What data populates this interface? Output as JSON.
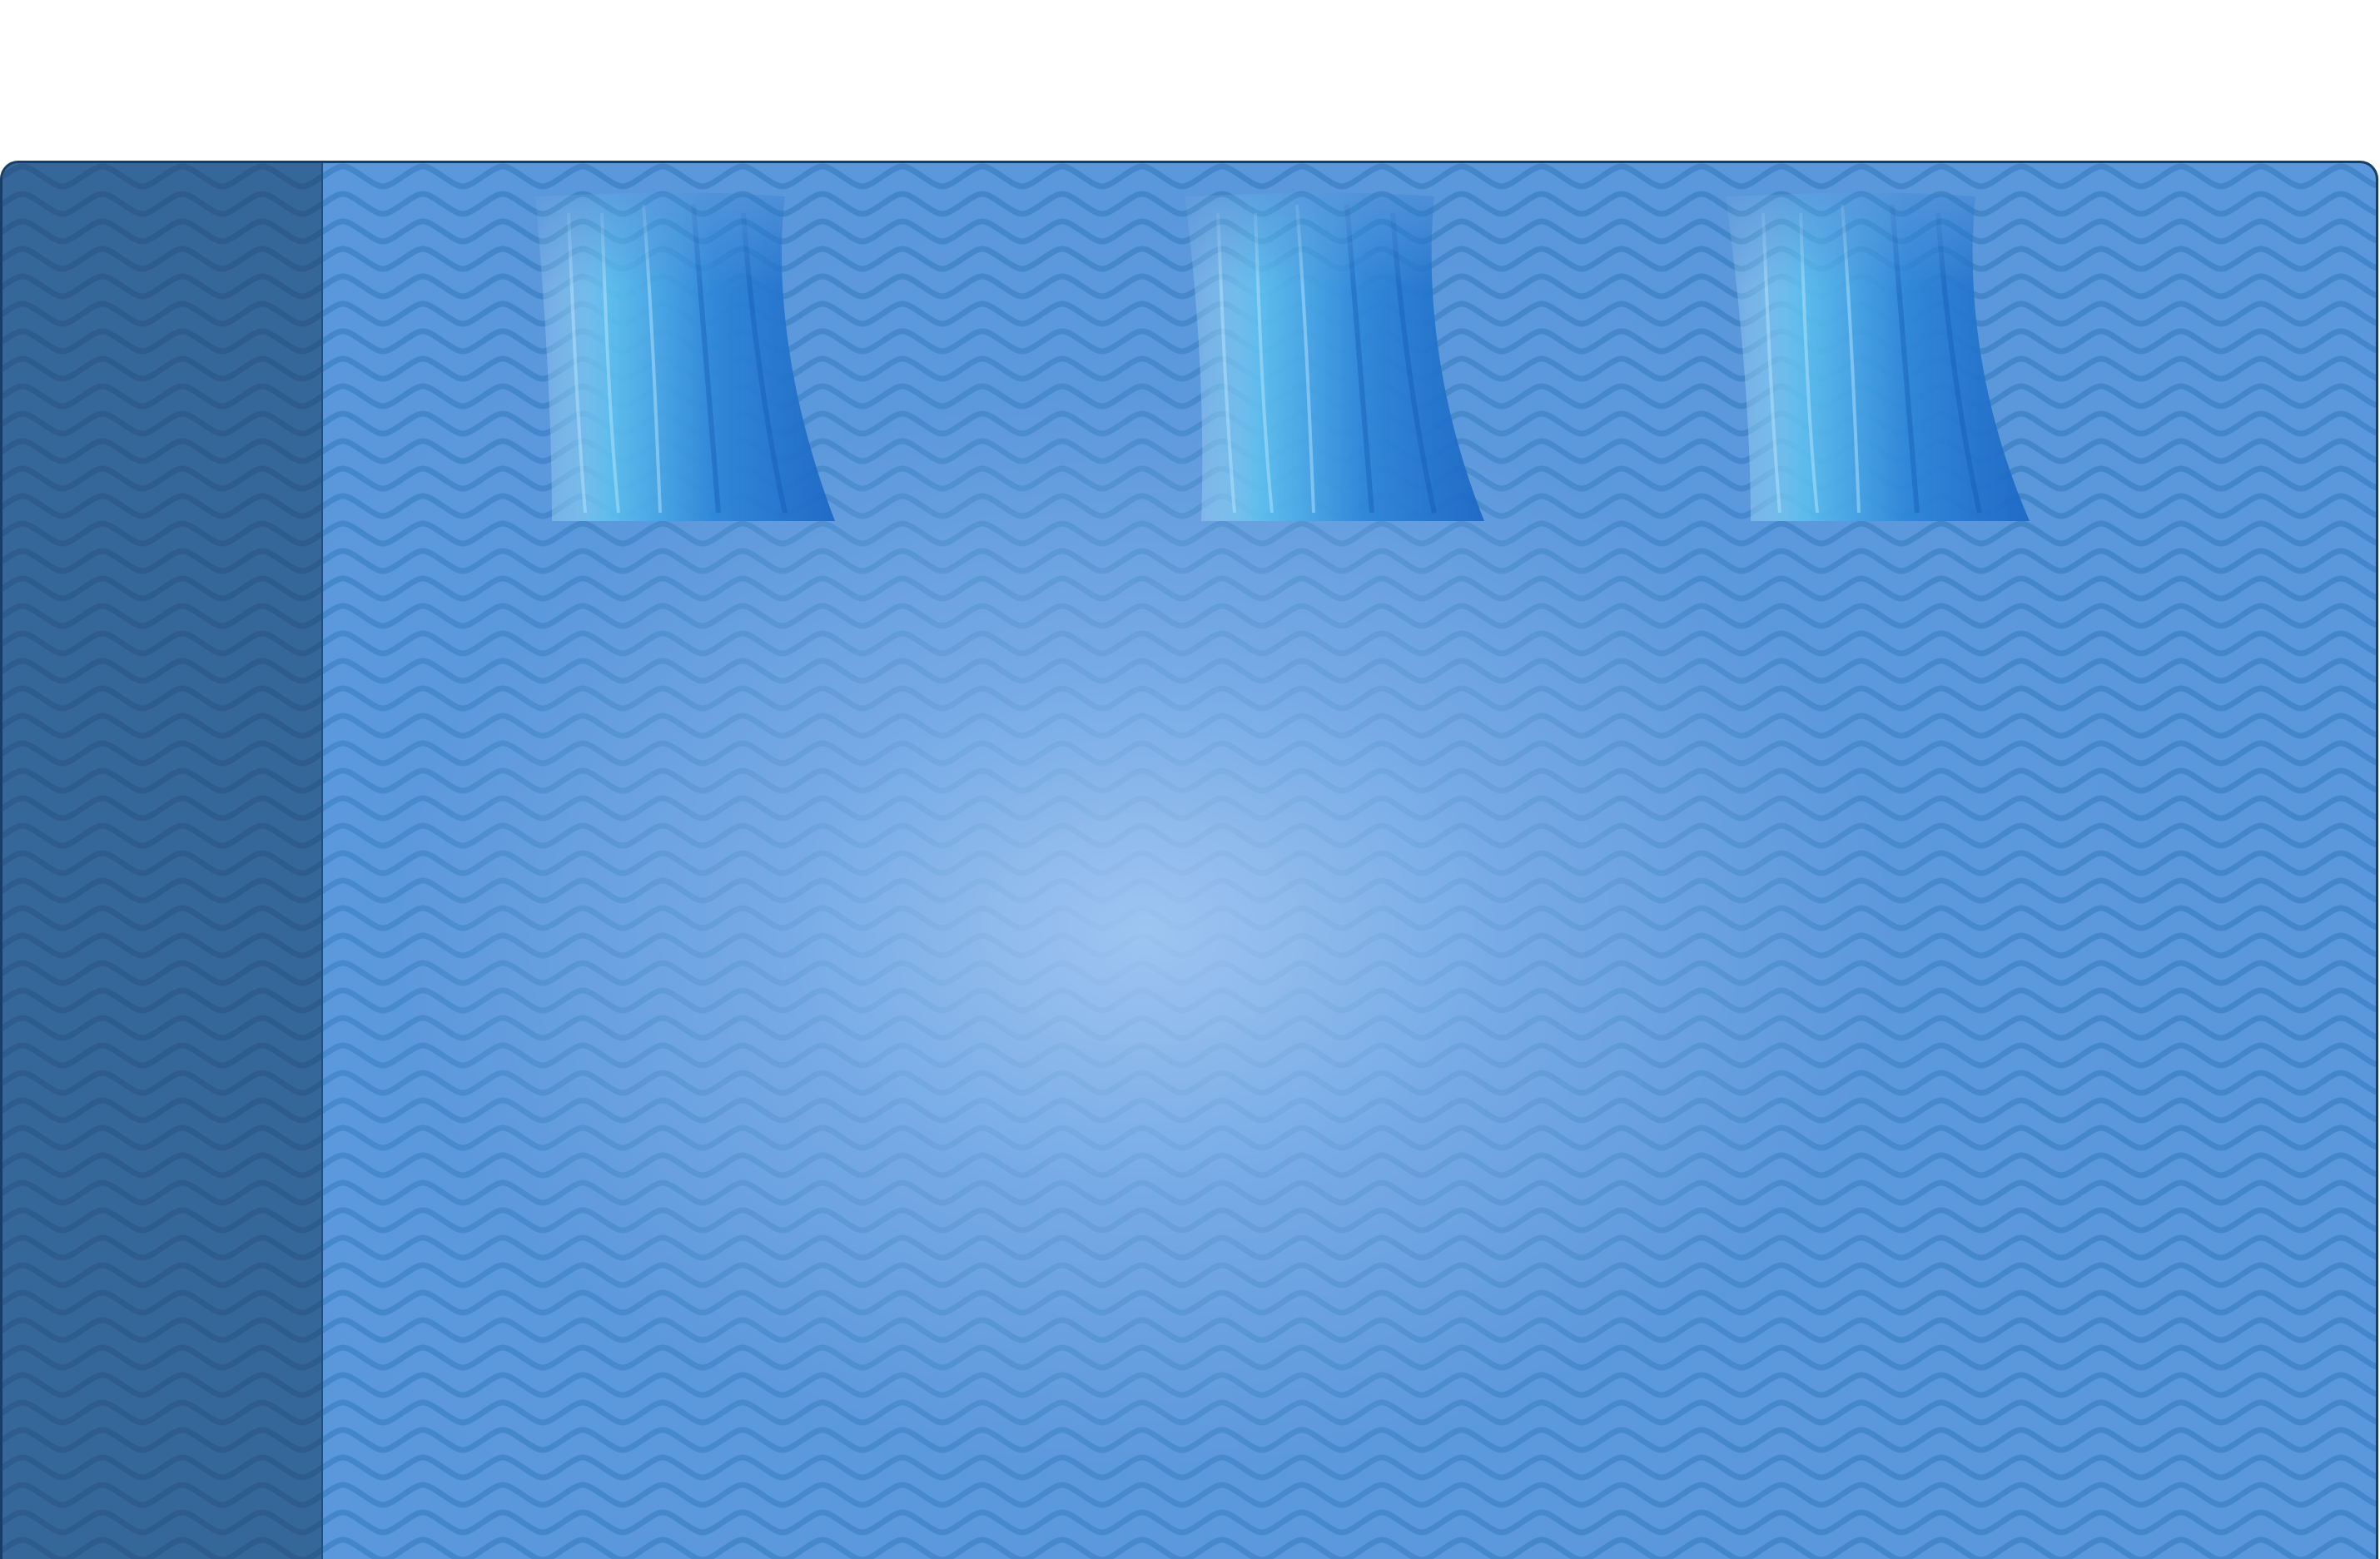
{
  "board": {
    "pool_color": "#5b97db",
    "pool_highlight": "#9cc3ef",
    "sidebar_color": "#36679b",
    "wave_color": "#3f83c6",
    "frame_color": "#163e66",
    "pattern": "wavy-lines"
  },
  "waterfalls": [
    {
      "name": "waterfall-left",
      "icon": "waterfall-icon"
    },
    {
      "name": "waterfall-center",
      "icon": "waterfall-icon"
    },
    {
      "name": "waterfall-right",
      "icon": "waterfall-icon"
    }
  ]
}
